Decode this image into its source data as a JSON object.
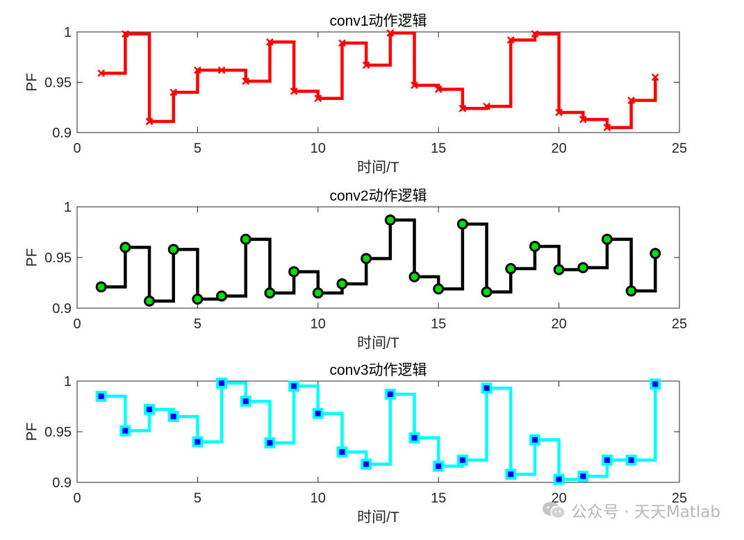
{
  "watermark": {
    "text": "公众号 · 天天Matlab",
    "icon": "wechat-icon"
  },
  "chart_data": [
    {
      "type": "line",
      "step": true,
      "title": "conv1动作逻辑",
      "xlabel": "时间/T",
      "ylabel": "PF",
      "xlim": [
        0,
        25
      ],
      "ylim": [
        0.9,
        1.0
      ],
      "xticks": [
        "0",
        "5",
        "10",
        "15",
        "20",
        "25"
      ],
      "yticks": [
        "0.9",
        "0.95",
        "1"
      ],
      "line_color": "#ff0000",
      "marker": "x",
      "marker_color": "#ff0000",
      "grid": false,
      "x": [
        1,
        2,
        3,
        4,
        5,
        6,
        7,
        8,
        9,
        10,
        11,
        12,
        13,
        14,
        15,
        16,
        17,
        18,
        19,
        20,
        21,
        22,
        23,
        24
      ],
      "y": [
        0.959,
        0.998,
        0.911,
        0.94,
        0.962,
        0.962,
        0.951,
        0.99,
        0.941,
        0.934,
        0.989,
        0.967,
        0.999,
        0.947,
        0.943,
        0.924,
        0.926,
        0.992,
        0.998,
        0.92,
        0.913,
        0.905,
        0.932,
        0.955
      ]
    },
    {
      "type": "line",
      "step": true,
      "title": "conv2动作逻辑",
      "xlabel": "时间/T",
      "ylabel": "PF",
      "xlim": [
        0,
        25
      ],
      "ylim": [
        0.9,
        1.0
      ],
      "xticks": [
        "0",
        "5",
        "10",
        "15",
        "20",
        "25"
      ],
      "yticks": [
        "0.9",
        "0.95",
        "1"
      ],
      "line_color": "#000000",
      "marker": "circle",
      "marker_color": "#00dd00",
      "marker_edge": "#000000",
      "grid": false,
      "x": [
        1,
        2,
        3,
        4,
        5,
        6,
        7,
        8,
        9,
        10,
        11,
        12,
        13,
        14,
        15,
        16,
        17,
        18,
        19,
        20,
        21,
        22,
        23,
        24
      ],
      "y": [
        0.921,
        0.96,
        0.907,
        0.958,
        0.909,
        0.912,
        0.968,
        0.915,
        0.936,
        0.915,
        0.924,
        0.949,
        0.987,
        0.931,
        0.919,
        0.983,
        0.916,
        0.939,
        0.961,
        0.938,
        0.94,
        0.968,
        0.917,
        0.954
      ]
    },
    {
      "type": "line",
      "step": true,
      "title": "conv3动作逻辑",
      "xlabel": "时间/T",
      "ylabel": "PF",
      "xlim": [
        0,
        25
      ],
      "ylim": [
        0.9,
        1.0
      ],
      "xticks": [
        "0",
        "5",
        "10",
        "15",
        "20",
        "25"
      ],
      "yticks": [
        "0.9",
        "0.95",
        "1"
      ],
      "line_color": "#00ffff",
      "marker": "square",
      "marker_color": "#0000ff",
      "marker_edge": "#00ffff",
      "grid": false,
      "x": [
        1,
        2,
        3,
        4,
        5,
        6,
        7,
        8,
        9,
        10,
        11,
        12,
        13,
        14,
        15,
        16,
        17,
        18,
        19,
        20,
        21,
        22,
        23,
        24
      ],
      "y": [
        0.985,
        0.951,
        0.972,
        0.965,
        0.94,
        0.998,
        0.98,
        0.939,
        0.995,
        0.968,
        0.93,
        0.918,
        0.987,
        0.944,
        0.916,
        0.922,
        0.993,
        0.908,
        0.942,
        0.903,
        0.906,
        0.922,
        0.922,
        0.997
      ]
    }
  ]
}
